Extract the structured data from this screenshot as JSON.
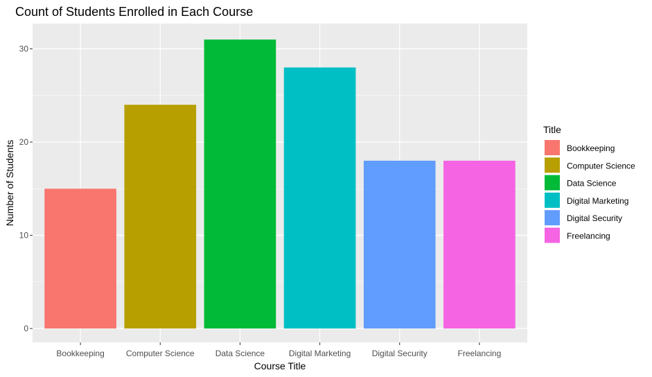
{
  "chart_data": {
    "type": "bar",
    "title": "Count of Students Enrolled in Each Course",
    "xlabel": "Course Title",
    "ylabel": "Number of Students",
    "categories": [
      "Bookkeeping",
      "Computer Science",
      "Data Science",
      "Digital Marketing",
      "Digital Security",
      "Freelancing"
    ],
    "values": [
      15,
      24,
      31,
      28,
      18,
      18
    ],
    "colors": [
      "#F8766D",
      "#B79F00",
      "#00BA38",
      "#00BFC4",
      "#619CFF",
      "#F564E3"
    ],
    "ylim": [
      0,
      32.8
    ],
    "yticks": [
      0,
      10,
      20,
      30
    ],
    "grid": true,
    "legend": {
      "title": "Title",
      "placement": "right",
      "entries": [
        "Bookkeeping",
        "Computer Science",
        "Data Science",
        "Digital Marketing",
        "Digital Security",
        "Freelancing"
      ]
    },
    "panel_background": "#EBEBEB",
    "grid_color": "#FFFFFF"
  }
}
